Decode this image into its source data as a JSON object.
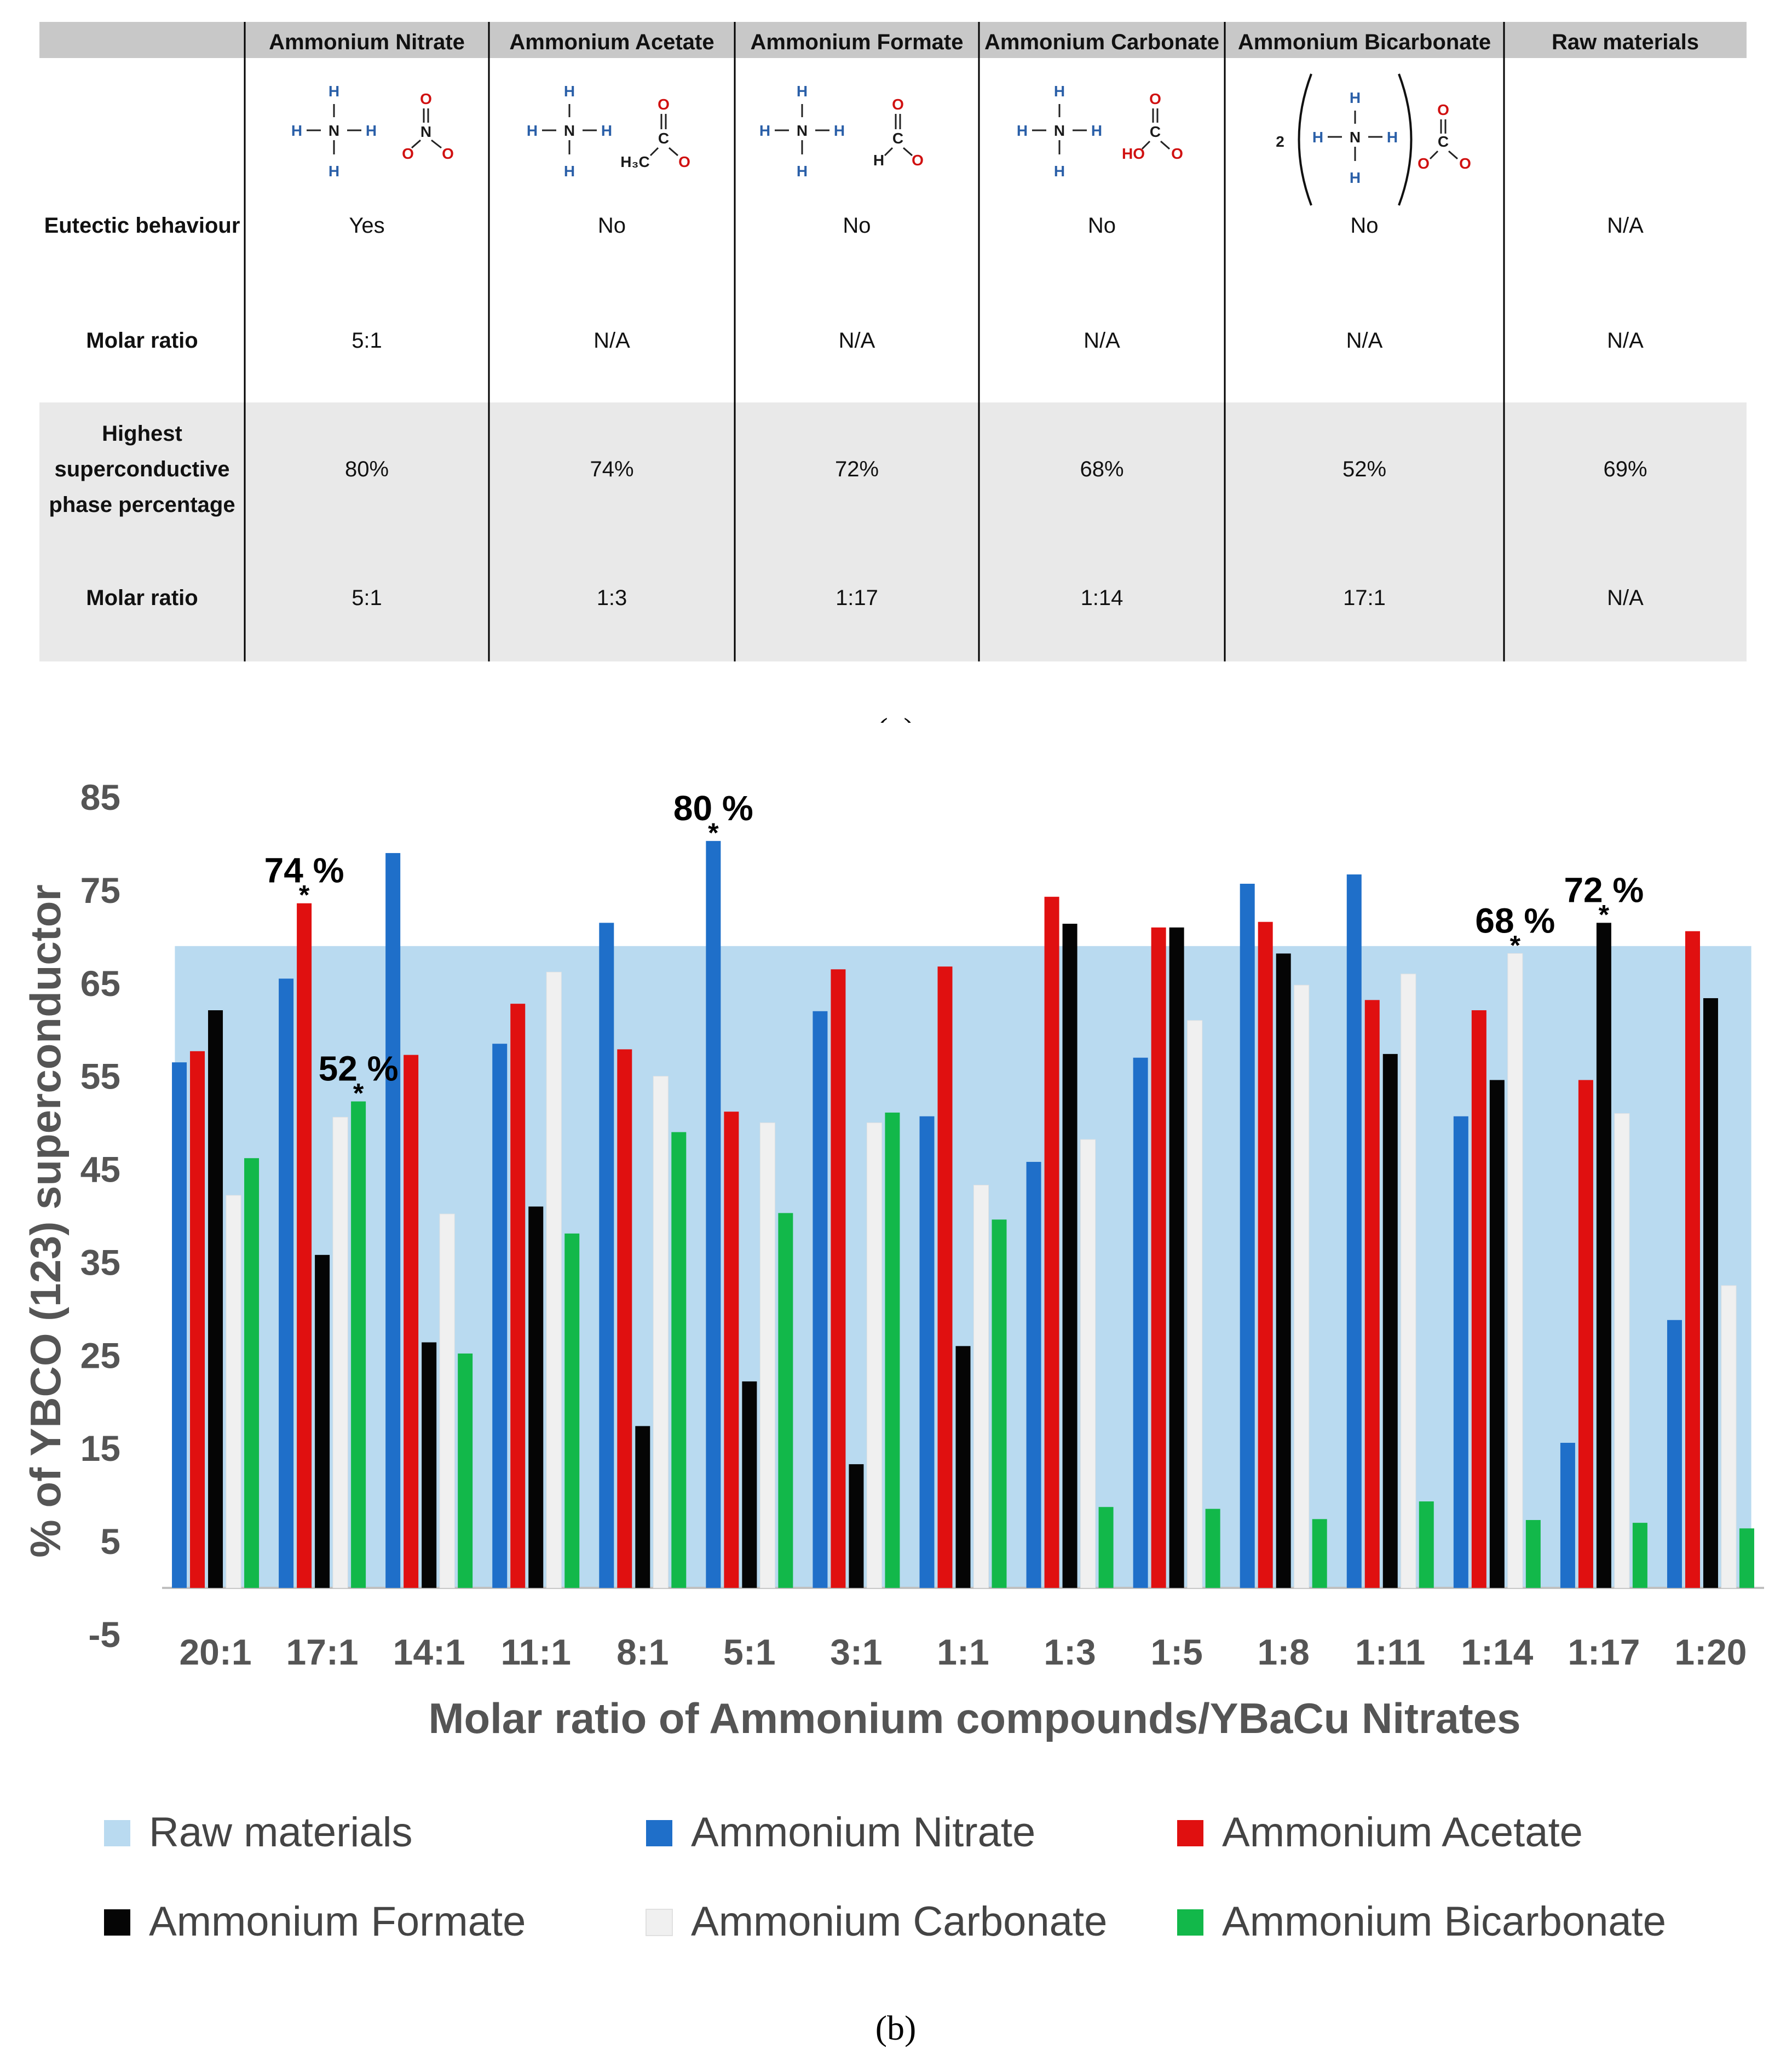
{
  "table": {
    "columns": [
      "Ammonium Nitrate",
      "Ammonium Acetate",
      "Ammonium Formate",
      "Ammonium Carbonate",
      "Ammonium Bicarbonate",
      "Raw materials"
    ],
    "rows": [
      {
        "label": "Eutectic behaviour",
        "values": [
          "Yes",
          "No",
          "No",
          "No",
          "No",
          "N/A"
        ]
      },
      {
        "label": "Molar ratio",
        "values": [
          "5:1",
          "N/A",
          "N/A",
          "N/A",
          "N/A",
          "N/A"
        ]
      },
      {
        "label_lines": [
          "Highest",
          "superconductive",
          "phase percentage"
        ],
        "values": [
          "80%",
          "74%",
          "72%",
          "68%",
          "52%",
          "69%"
        ]
      },
      {
        "label": "Molar ratio",
        "values": [
          "5:1",
          "1:3",
          "1:17",
          "1:14",
          "17:1",
          "N/A"
        ]
      }
    ],
    "structures": {
      "atoms": {
        "H": "H",
        "N": "N",
        "O": "O",
        "C": "C",
        "HO": "HO",
        "H3C": "H₃C",
        "multiplier": "2"
      },
      "bicarbonate_prefix": "2"
    }
  },
  "captions": {
    "a": "(a)",
    "b": "(b)"
  },
  "chart_data": {
    "type": "bar",
    "title": "",
    "xlabel": "Molar ratio of Ammonium compounds/YBaCu Nitrates",
    "ylabel": "% of YBCO (123) superconductor",
    "ylim": [
      -5,
      85
    ],
    "yticks": [
      85,
      75,
      65,
      55,
      45,
      35,
      25,
      15,
      5,
      -5
    ],
    "categories": [
      "20:1",
      "17:1",
      "14:1",
      "11:1",
      "8:1",
      "5:1",
      "3:1",
      "1:1",
      "1:3",
      "1:5",
      "1:8",
      "1:11",
      "1:14",
      "1:17",
      "1:20"
    ],
    "background_series": {
      "name": "Raw materials",
      "value": 69,
      "color": "#b9daf0"
    },
    "series": [
      {
        "name": "Ammonium Nitrate",
        "color": "#1f6fc9",
        "values": [
          56.5,
          65.5,
          79,
          58.5,
          71.5,
          80.3,
          62,
          50.7,
          45.8,
          57,
          75.7,
          76.7,
          50.7,
          15.6,
          28.8
        ]
      },
      {
        "name": "Ammonium Acetate",
        "color": "#e01010",
        "values": [
          57.7,
          73.6,
          57.3,
          62.8,
          57.9,
          51.2,
          66.5,
          66.8,
          74.3,
          71,
          71.6,
          63.2,
          62.1,
          54.6,
          70.6
        ]
      },
      {
        "name": "Ammonium Formate",
        "color": "#050505",
        "values": [
          62.1,
          35.8,
          26.4,
          41,
          17.4,
          22.2,
          13.3,
          26,
          71.4,
          71,
          68.2,
          57.4,
          54.6,
          71.5,
          63.4
        ]
      },
      {
        "name": "Ammonium Carbonate",
        "color": "#f0f0f0",
        "values": [
          42.2,
          50.6,
          40.2,
          66.2,
          55,
          50,
          50,
          43.3,
          48.2,
          61,
          64.8,
          66,
          68.2,
          51,
          32.5
        ]
      },
      {
        "name": "Ammonium Bicarbonate",
        "color": "#12b84a",
        "values": [
          46.2,
          52.3,
          25.2,
          38.1,
          49,
          40.3,
          51.1,
          39.6,
          8.7,
          8.5,
          7.4,
          9.3,
          7.3,
          7,
          6.4
        ]
      }
    ],
    "annotations": [
      {
        "label": "74 %",
        "category": "17:1",
        "series": "Ammonium Acetate"
      },
      {
        "label": "52 %",
        "category": "17:1",
        "series": "Ammonium Bicarbonate"
      },
      {
        "label": "80 %",
        "category": "5:1",
        "series": "Ammonium Nitrate"
      },
      {
        "label": "68 %",
        "category": "1:14",
        "series": "Ammonium Carbonate"
      },
      {
        "label": "72 %",
        "category": "1:17",
        "series": "Ammonium Formate"
      }
    ],
    "annotation_marker": "*",
    "legend": {
      "position": "bottom",
      "entries": [
        "Raw materials",
        "Ammonium Nitrate",
        "Ammonium Acetate",
        "Ammonium Formate",
        "Ammonium Carbonate",
        "Ammonium Bicarbonate"
      ]
    }
  }
}
